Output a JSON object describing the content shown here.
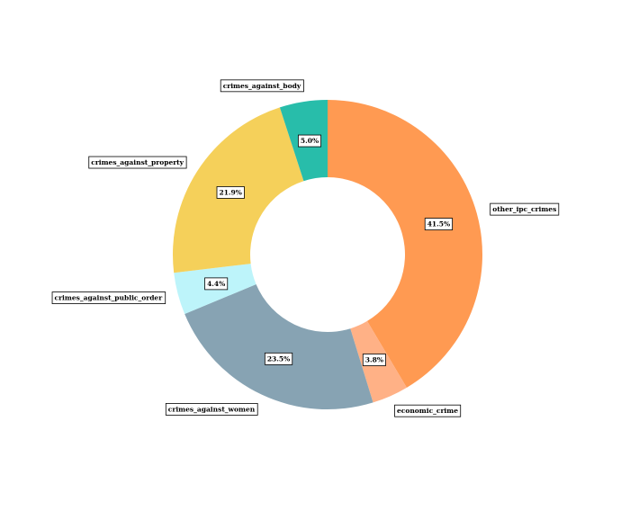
{
  "chart_data": {
    "type": "pie",
    "donut": true,
    "start_angle_deg": 90,
    "direction": "clockwise",
    "slices": [
      {
        "label": "other_ipc_crimes",
        "value": 41.5,
        "pct_label": "41.5%",
        "color": "#FF9A52"
      },
      {
        "label": "economic_crime",
        "value": 3.8,
        "pct_label": "3.8%",
        "color": "#FFB186"
      },
      {
        "label": "crimes_against_women",
        "value": 23.5,
        "pct_label": "23.5%",
        "color": "#87A3B3"
      },
      {
        "label": "crimes_against_public_order",
        "value": 4.4,
        "pct_label": "4.4%",
        "color": "#BDF4FA"
      },
      {
        "label": "crimes_against_property",
        "value": 21.9,
        "pct_label": "21.9%",
        "color": "#F5D05A"
      },
      {
        "label": "crimes_against_body",
        "value": 5.0,
        "pct_label": "5.0%",
        "color": "#28BDAA"
      }
    ]
  }
}
